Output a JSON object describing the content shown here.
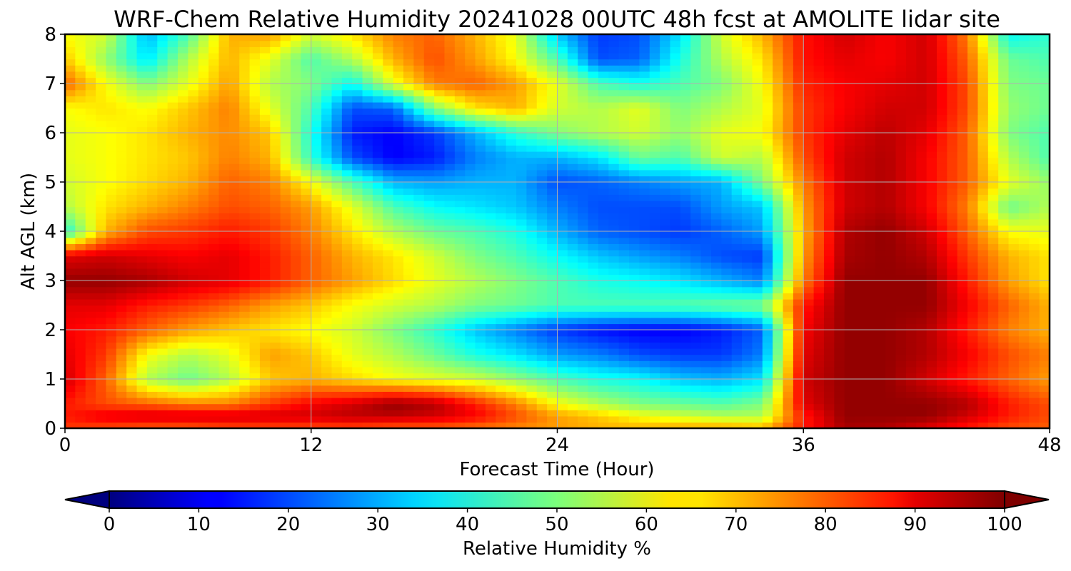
{
  "chart_data": {
    "type": "heatmap",
    "title": "WRF-Chem Relative Humidity 20241028 00UTC 48h fcst at AMOLITE lidar site",
    "xlabel": "Forecast Time (Hour)",
    "ylabel": "Alt AGL (km)",
    "xlim": [
      0,
      48
    ],
    "ylim": [
      0,
      8
    ],
    "x_ticks": [
      0,
      12,
      24,
      36,
      48
    ],
    "y_ticks": [
      0,
      1,
      2,
      3,
      4,
      5,
      6,
      7,
      8
    ],
    "grid": true,
    "colormap": "jet",
    "colorbar": {
      "label": "Relative Humidity %",
      "ticks": [
        0,
        10,
        20,
        30,
        40,
        50,
        60,
        70,
        80,
        90,
        100
      ],
      "range": [
        0,
        100
      ],
      "extend": "both",
      "orientation": "horizontal",
      "placement": "bottom"
    },
    "x": [
      0,
      2,
      4,
      6,
      8,
      10,
      12,
      14,
      16,
      18,
      20,
      22,
      24,
      26,
      28,
      30,
      32,
      34,
      36,
      38,
      40,
      42,
      44,
      46,
      48
    ],
    "y": [
      0,
      0.25,
      0.5,
      1,
      1.5,
      2,
      2.5,
      3,
      3.5,
      4,
      4.5,
      5,
      5.5,
      6,
      6.5,
      7,
      7.5,
      8
    ],
    "z": [
      [
        82,
        80,
        78,
        78,
        80,
        80,
        80,
        80,
        78,
        78,
        76,
        74,
        72,
        70,
        70,
        72,
        72,
        70,
        85,
        96,
        95,
        90,
        85,
        80,
        78
      ],
      [
        85,
        90,
        92,
        92,
        92,
        92,
        92,
        94,
        94,
        92,
        88,
        80,
        72,
        68,
        62,
        58,
        55,
        55,
        85,
        98,
        98,
        98,
        92,
        85,
        80
      ],
      [
        85,
        80,
        78,
        75,
        75,
        82,
        88,
        92,
        98,
        95,
        85,
        75,
        62,
        55,
        50,
        48,
        46,
        50,
        90,
        98,
        98,
        98,
        95,
        85,
        80
      ],
      [
        92,
        78,
        55,
        48,
        55,
        68,
        70,
        66,
        62,
        60,
        58,
        52,
        45,
        40,
        38,
        32,
        30,
        35,
        92,
        98,
        98,
        92,
        85,
        78,
        72
      ],
      [
        90,
        82,
        62,
        55,
        60,
        72,
        68,
        60,
        55,
        48,
        40,
        35,
        28,
        25,
        20,
        18,
        18,
        25,
        90,
        98,
        98,
        95,
        88,
        80,
        75
      ],
      [
        88,
        85,
        78,
        72,
        68,
        65,
        62,
        58,
        50,
        42,
        32,
        25,
        18,
        14,
        12,
        12,
        15,
        22,
        88,
        98,
        98,
        95,
        85,
        75,
        70
      ],
      [
        90,
        90,
        85,
        82,
        78,
        72,
        68,
        62,
        58,
        55,
        50,
        48,
        45,
        45,
        45,
        46,
        48,
        50,
        85,
        98,
        98,
        98,
        88,
        78,
        70
      ],
      [
        98,
        98,
        96,
        92,
        90,
        85,
        78,
        72,
        66,
        60,
        55,
        50,
        45,
        40,
        38,
        35,
        30,
        25,
        75,
        98,
        98,
        98,
        85,
        72,
        65
      ],
      [
        90,
        92,
        90,
        88,
        90,
        85,
        78,
        70,
        65,
        58,
        50,
        45,
        38,
        32,
        28,
        25,
        20,
        18,
        72,
        96,
        98,
        95,
        82,
        70,
        65
      ],
      [
        40,
        70,
        80,
        82,
        85,
        82,
        75,
        65,
        55,
        48,
        45,
        40,
        30,
        22,
        20,
        18,
        22,
        28,
        70,
        95,
        98,
        92,
        78,
        62,
        60
      ],
      [
        55,
        65,
        70,
        75,
        80,
        78,
        72,
        60,
        45,
        38,
        35,
        32,
        25,
        20,
        20,
        20,
        28,
        32,
        72,
        92,
        95,
        88,
        75,
        48,
        55
      ],
      [
        58,
        62,
        66,
        70,
        78,
        75,
        62,
        45,
        30,
        28,
        30,
        30,
        20,
        22,
        25,
        28,
        30,
        50,
        75,
        92,
        95,
        88,
        78,
        60,
        52
      ],
      [
        60,
        62,
        65,
        68,
        75,
        70,
        42,
        20,
        12,
        15,
        25,
        30,
        30,
        35,
        48,
        45,
        58,
        55,
        80,
        92,
        95,
        88,
        78,
        55,
        45
      ],
      [
        60,
        62,
        65,
        70,
        74,
        68,
        40,
        15,
        12,
        18,
        30,
        42,
        50,
        55,
        58,
        52,
        60,
        62,
        82,
        90,
        94,
        90,
        78,
        50,
        45
      ],
      [
        62,
        65,
        62,
        68,
        75,
        60,
        45,
        20,
        22,
        50,
        65,
        70,
        58,
        55,
        60,
        50,
        55,
        60,
        82,
        88,
        92,
        92,
        80,
        52,
        48
      ],
      [
        78,
        62,
        50,
        60,
        72,
        55,
        50,
        38,
        60,
        75,
        78,
        72,
        60,
        45,
        40,
        45,
        50,
        62,
        84,
        88,
        90,
        92,
        80,
        50,
        48
      ],
      [
        68,
        52,
        35,
        55,
        70,
        60,
        45,
        55,
        70,
        80,
        72,
        62,
        45,
        20,
        22,
        40,
        55,
        65,
        86,
        90,
        88,
        92,
        78,
        48,
        45
      ],
      [
        62,
        58,
        30,
        45,
        70,
        72,
        58,
        65,
        75,
        78,
        70,
        60,
        32,
        18,
        20,
        35,
        58,
        70,
        86,
        92,
        88,
        92,
        75,
        38,
        42
      ]
    ]
  }
}
